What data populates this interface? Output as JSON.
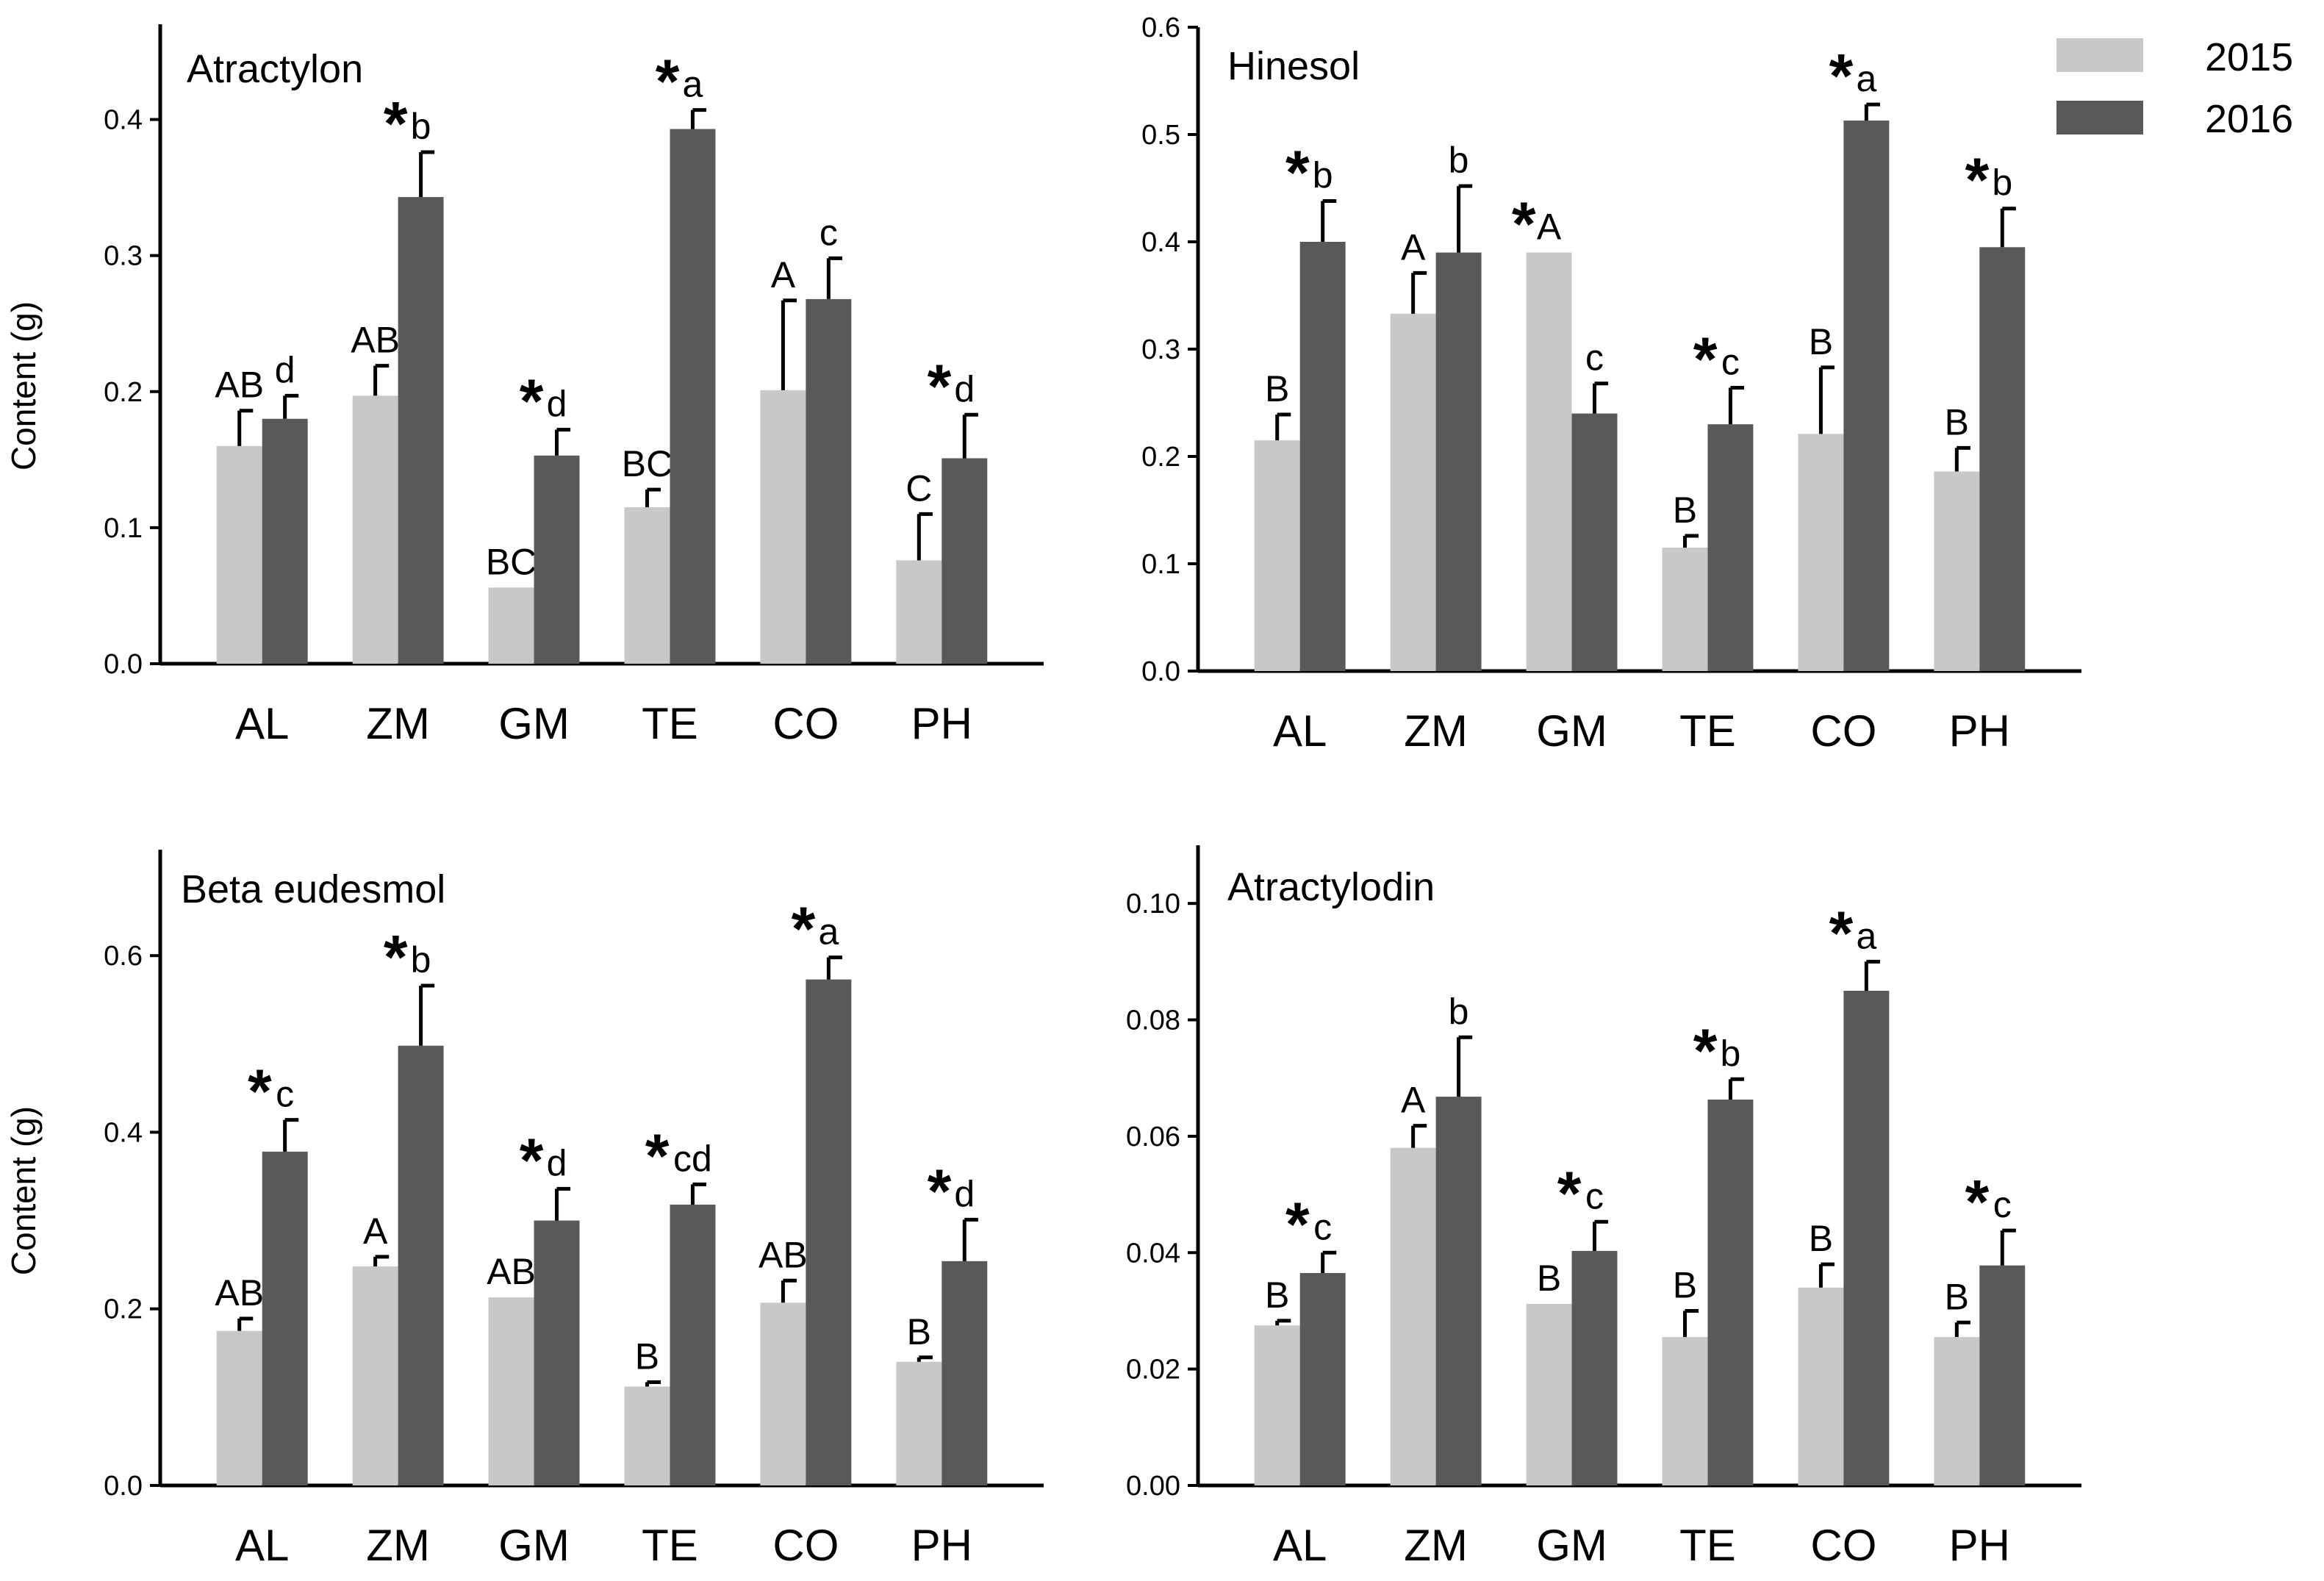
{
  "figure": {
    "ylabel": "Content (g)"
  },
  "legend": [
    {
      "label": "2015",
      "color": "#c8c8c8"
    },
    {
      "label": "2016",
      "color": "#595959"
    }
  ],
  "chart_data": [
    {
      "type": "bar",
      "title": "Atractylon",
      "ylabel": "Content (g)",
      "ylim": [
        0,
        0.47
      ],
      "yticks": [
        "0.0",
        "0.1",
        "0.2",
        "0.3",
        "0.4"
      ],
      "categories": [
        "AL",
        "ZM",
        "GM",
        "TE",
        "CO",
        "PH"
      ],
      "series": [
        {
          "name": "2015",
          "values": [
            0.16,
            0.197,
            0.056,
            0.115,
            0.201,
            0.076
          ],
          "errors": [
            0.026,
            0.022,
            0.0,
            0.013,
            0.066,
            0.034
          ],
          "letters": [
            "AB",
            "AB",
            "BC",
            "BC",
            "A",
            "C"
          ],
          "stars": [
            false,
            false,
            false,
            false,
            false,
            false
          ]
        },
        {
          "name": "2016",
          "values": [
            0.18,
            0.343,
            0.153,
            0.393,
            0.268,
            0.151
          ],
          "errors": [
            0.017,
            0.033,
            0.019,
            0.014,
            0.03,
            0.032
          ],
          "letters": [
            "d",
            "b",
            "d",
            "a",
            "c",
            "d"
          ],
          "stars": [
            false,
            true,
            true,
            true,
            false,
            true
          ]
        }
      ]
    },
    {
      "type": "bar",
      "title": "Hinesol",
      "ylabel": "",
      "ylim": [
        0,
        0.6
      ],
      "yticks": [
        "0.0",
        "0.1",
        "0.2",
        "0.3",
        "0.4",
        "0.5",
        "0.6"
      ],
      "categories": [
        "AL",
        "ZM",
        "GM",
        "TE",
        "CO",
        "PH"
      ],
      "series": [
        {
          "name": "2015",
          "values": [
            0.215,
            0.333,
            0.39,
            0.115,
            0.221,
            0.186
          ],
          "errors": [
            0.024,
            0.038,
            0.0,
            0.011,
            0.062,
            0.022
          ],
          "letters": [
            "B",
            "A",
            "A",
            "B",
            "B",
            "B"
          ],
          "stars": [
            false,
            false,
            true,
            false,
            false,
            false
          ]
        },
        {
          "name": "2016",
          "values": [
            0.4,
            0.39,
            0.24,
            0.23,
            0.513,
            0.395
          ],
          "errors": [
            0.038,
            0.062,
            0.028,
            0.034,
            0.015,
            0.036
          ],
          "letters": [
            "b",
            "b",
            "c",
            "c",
            "a",
            "b"
          ],
          "stars": [
            true,
            false,
            false,
            true,
            true,
            true
          ]
        }
      ]
    },
    {
      "type": "bar",
      "title": "Beta eudesmol",
      "ylabel": "Content (g)",
      "ylim": [
        0,
        0.72
      ],
      "yticks": [
        "0.0",
        "0.2",
        "0.4",
        "0.6"
      ],
      "categories": [
        "AL",
        "ZM",
        "GM",
        "TE",
        "CO",
        "PH"
      ],
      "series": [
        {
          "name": "2015",
          "values": [
            0.175,
            0.248,
            0.213,
            0.112,
            0.207,
            0.14
          ],
          "errors": [
            0.014,
            0.011,
            0.0,
            0.005,
            0.025,
            0.005
          ],
          "letters": [
            "AB",
            "A",
            "AB",
            "B",
            "AB",
            "B"
          ],
          "stars": [
            false,
            false,
            false,
            false,
            false,
            false
          ]
        },
        {
          "name": "2016",
          "values": [
            0.378,
            0.498,
            0.3,
            0.318,
            0.573,
            0.254
          ],
          "errors": [
            0.036,
            0.068,
            0.036,
            0.023,
            0.025,
            0.047
          ],
          "letters": [
            "c",
            "b",
            "d",
            "cd",
            "a",
            "d"
          ],
          "stars": [
            true,
            true,
            true,
            true,
            true,
            true
          ]
        }
      ]
    },
    {
      "type": "bar",
      "title": "Atractylodin",
      "ylabel": "",
      "ylim": [
        0,
        0.11
      ],
      "yticks": [
        "0.00",
        "0.02",
        "0.04",
        "0.06",
        "0.08",
        "0.10"
      ],
      "categories": [
        "AL",
        "ZM",
        "GM",
        "TE",
        "CO",
        "PH"
      ],
      "series": [
        {
          "name": "2015",
          "values": [
            0.0275,
            0.058,
            0.0312,
            0.0255,
            0.034,
            0.0255
          ],
          "errors": [
            0.0008,
            0.0038,
            0.0,
            0.0045,
            0.004,
            0.0025
          ],
          "letters": [
            "B",
            "A",
            "B",
            "B",
            "B",
            "B"
          ],
          "stars": [
            false,
            false,
            false,
            false,
            false,
            false
          ]
        },
        {
          "name": "2016",
          "values": [
            0.0365,
            0.0668,
            0.0403,
            0.0663,
            0.085,
            0.0378
          ],
          "errors": [
            0.0035,
            0.0102,
            0.005,
            0.0035,
            0.005,
            0.006
          ],
          "letters": [
            "c",
            "b",
            "c",
            "b",
            "a",
            "c"
          ],
          "stars": [
            true,
            false,
            true,
            true,
            true,
            true
          ]
        }
      ]
    }
  ]
}
